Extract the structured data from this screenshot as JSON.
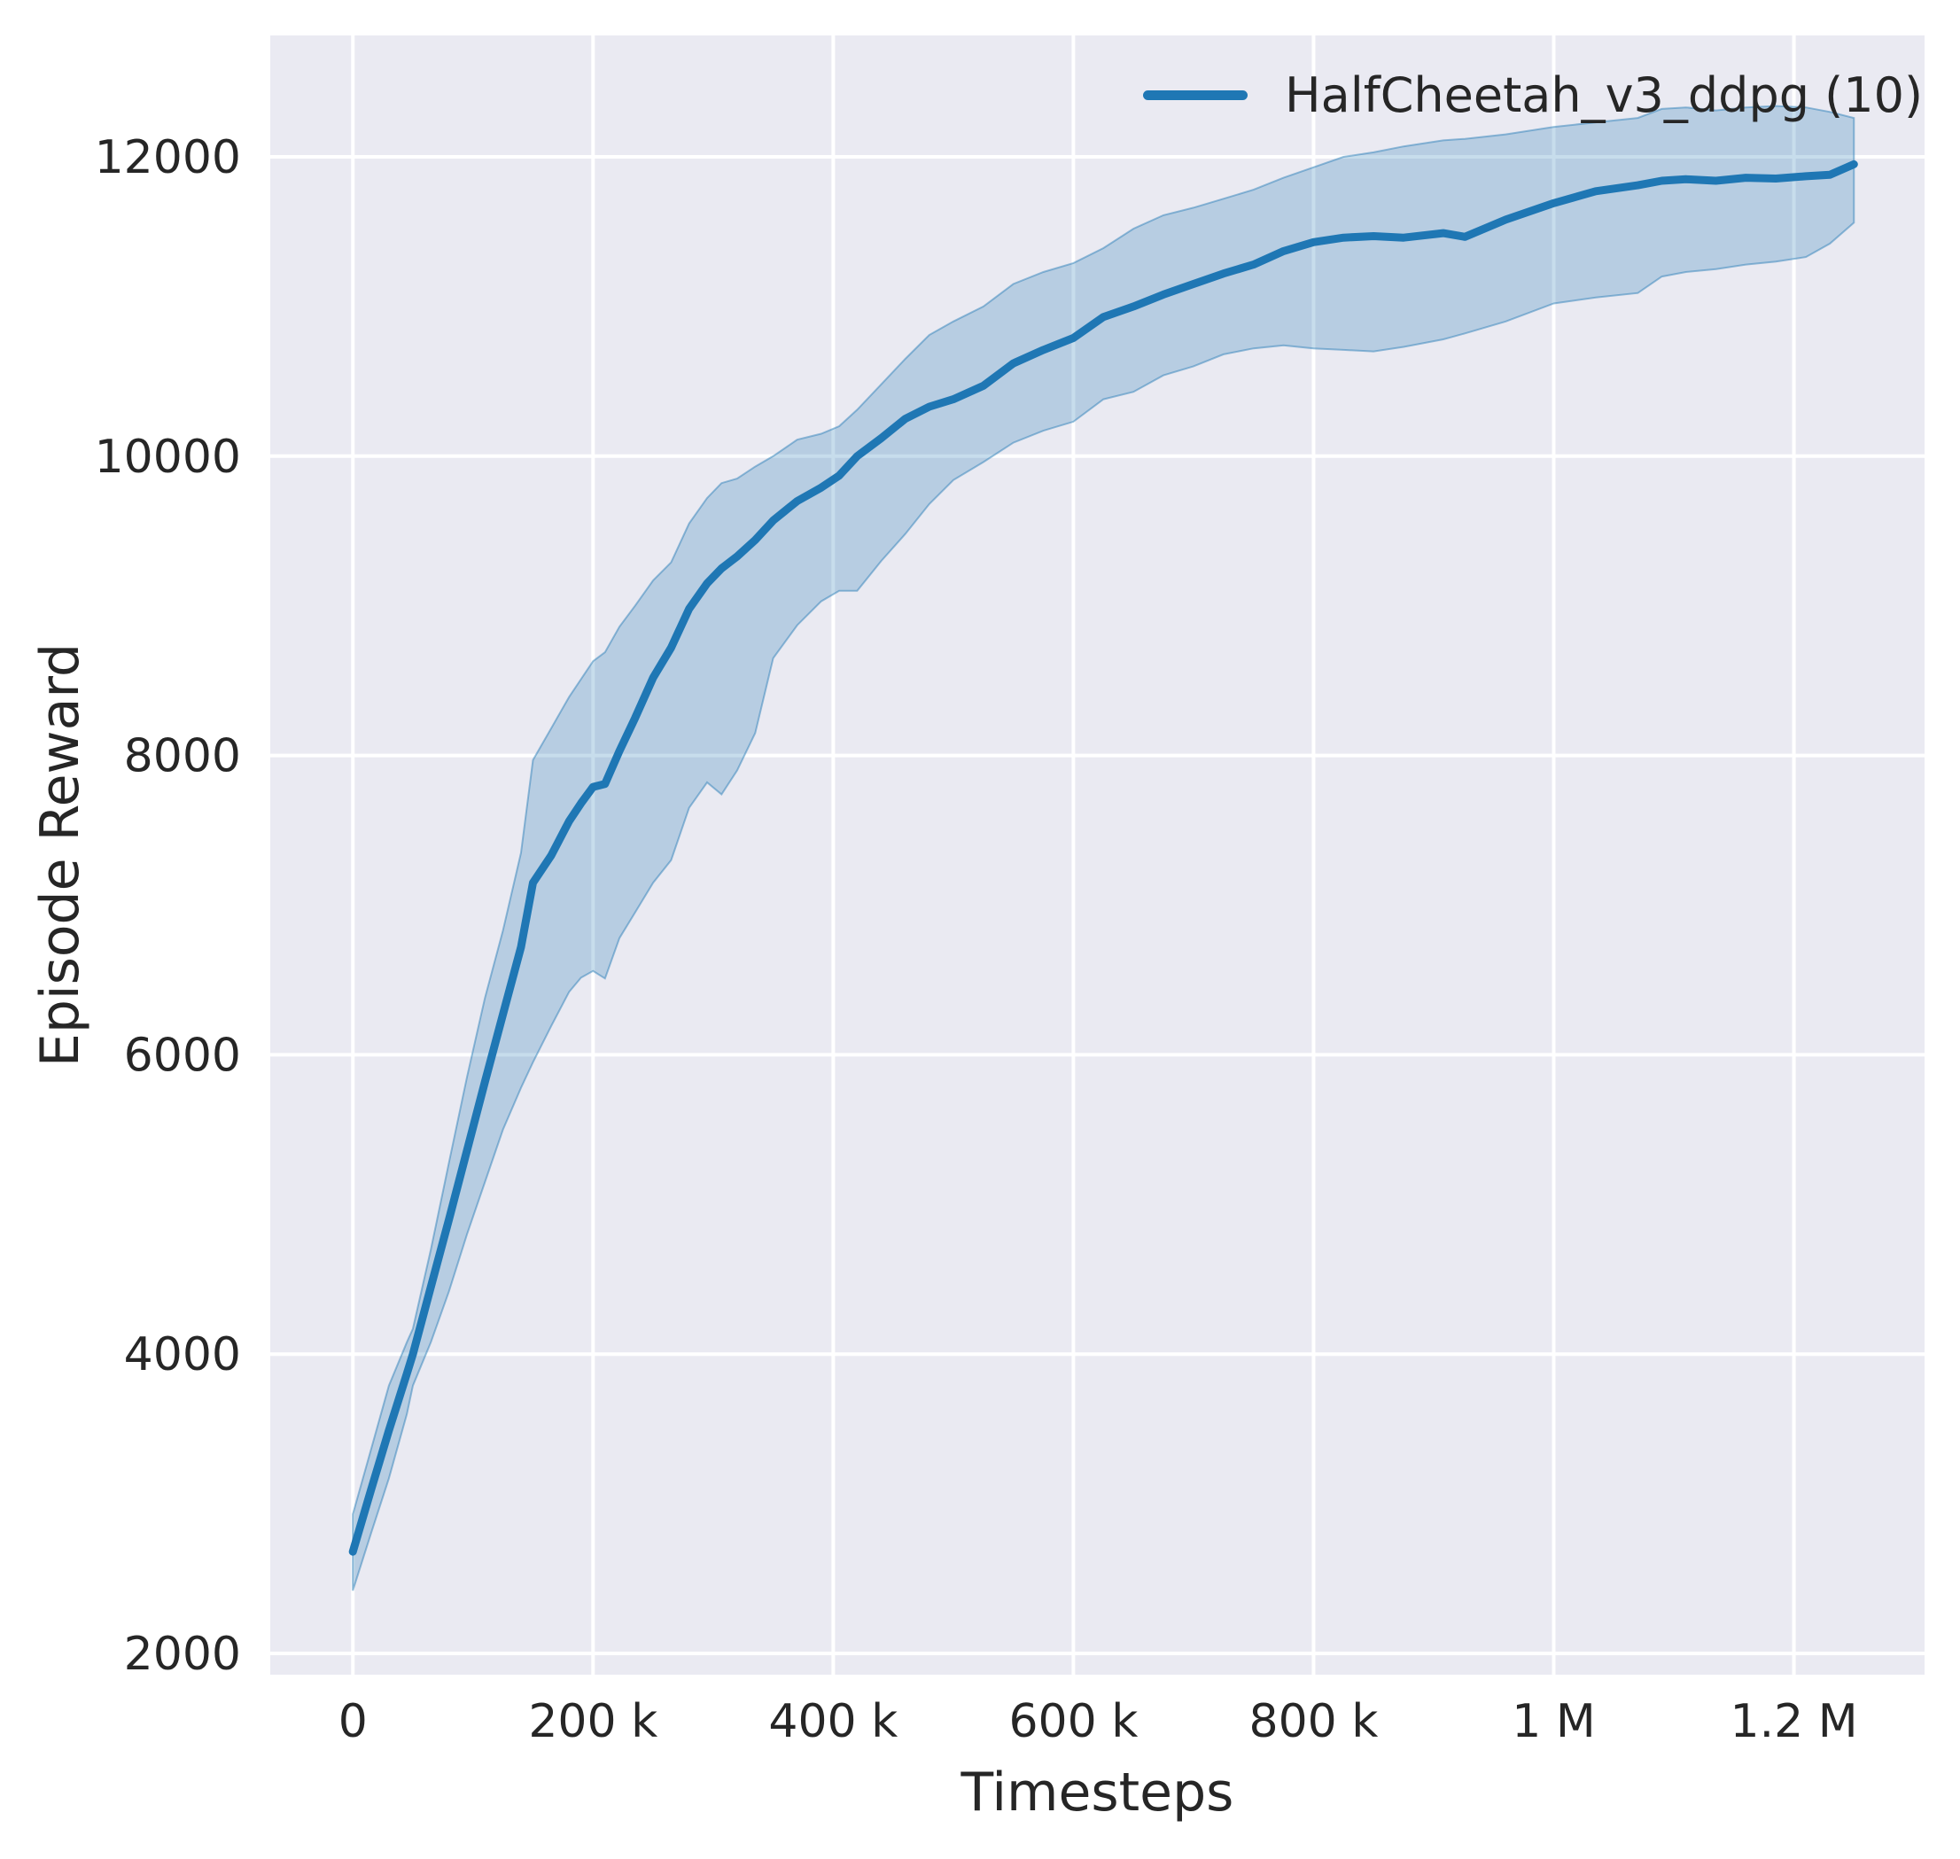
{
  "chart_data": {
    "type": "line",
    "title": "",
    "xlabel": "Timesteps",
    "ylabel": "Episode Reward",
    "grid": true,
    "plot_bg_color": "#eaeaf2",
    "grid_color": "#ffffff",
    "text_color": "#262626",
    "accent_color": "#1f77b4",
    "xlim": [
      -68800,
      1308800
    ],
    "ylim": [
      1858,
      12811
    ],
    "xticks": {
      "values": [
        0,
        200000,
        400000,
        600000,
        800000,
        1000000,
        1200000
      ],
      "labels": [
        "0",
        "200 k",
        "400 k",
        "600 k",
        "800 k",
        "1 M",
        "1.2 M"
      ]
    },
    "yticks": {
      "values": [
        2000,
        4000,
        6000,
        8000,
        10000,
        12000
      ],
      "labels": [
        "2000",
        "4000",
        "6000",
        "8000",
        "10000",
        "12000"
      ]
    },
    "legend": {
      "position": "upper right",
      "entries": [
        {
          "label": "HalfCheetah_v3_ddpg (10)",
          "color": "#1f77b4"
        }
      ]
    },
    "series": [
      {
        "name": "HalfCheetah_v3_ddpg (10)",
        "color": "#1f77b4",
        "band_fill_opacity": 0.25,
        "band_edge_opacity": 0.45,
        "x": [
          0,
          15000,
          30000,
          45000,
          50000,
          65000,
          80000,
          95000,
          110000,
          125000,
          140000,
          150000,
          165000,
          180000,
          190000,
          200000,
          210000,
          222000,
          235000,
          250000,
          265000,
          280000,
          295000,
          307000,
          320000,
          335000,
          350000,
          370000,
          390000,
          405000,
          420000,
          440000,
          460000,
          480000,
          500000,
          525000,
          550000,
          575000,
          600000,
          625000,
          650000,
          675000,
          700000,
          725000,
          750000,
          775000,
          800000,
          825000,
          850000,
          875000,
          908000,
          926000,
          960000,
          1000000,
          1035000,
          1070000,
          1090000,
          1110000,
          1135000,
          1160000,
          1185000,
          1210000,
          1230000,
          1250000
        ],
        "mean": [
          2680,
          3090,
          3490,
          3870,
          4000,
          4450,
          4900,
          5360,
          5820,
          6270,
          6720,
          7150,
          7330,
          7560,
          7680,
          7790,
          7810,
          8030,
          8250,
          8520,
          8720,
          8980,
          9150,
          9250,
          9330,
          9440,
          9570,
          9700,
          9790,
          9870,
          10000,
          10120,
          10250,
          10330,
          10380,
          10470,
          10620,
          10710,
          10790,
          10930,
          11000,
          11080,
          11150,
          11220,
          11280,
          11370,
          11430,
          11460,
          11470,
          11460,
          11490,
          11465,
          11580,
          11690,
          11770,
          11810,
          11840,
          11850,
          11840,
          11860,
          11855,
          11870,
          11880,
          11950
        ],
        "lo": [
          2420,
          2800,
          3170,
          3600,
          3790,
          4080,
          4420,
          4800,
          5150,
          5500,
          5780,
          5950,
          6190,
          6420,
          6515,
          6560,
          6510,
          6780,
          6950,
          7150,
          7300,
          7650,
          7820,
          7740,
          7900,
          8150,
          8650,
          8870,
          9030,
          9100,
          9100,
          9300,
          9480,
          9680,
          9840,
          9960,
          10090,
          10170,
          10230,
          10380,
          10430,
          10540,
          10600,
          10680,
          10720,
          10740,
          10720,
          10710,
          10700,
          10730,
          10780,
          10820,
          10900,
          11020,
          11060,
          11090,
          11200,
          11230,
          11250,
          11280,
          11300,
          11330,
          11420,
          11560
        ],
        "hi": [
          2930,
          3360,
          3790,
          4080,
          4170,
          4700,
          5280,
          5850,
          6380,
          6830,
          7350,
          7970,
          8180,
          8390,
          8510,
          8630,
          8690,
          8860,
          9000,
          9170,
          9290,
          9550,
          9720,
          9820,
          9850,
          9930,
          10000,
          10110,
          10150,
          10200,
          10310,
          10480,
          10650,
          10810,
          10900,
          11000,
          11150,
          11230,
          11290,
          11390,
          11520,
          11610,
          11660,
          11720,
          11780,
          11860,
          11930,
          12000,
          12030,
          12070,
          12110,
          12120,
          12150,
          12200,
          12230,
          12260,
          12320,
          12330,
          12310,
          12330,
          12340,
          12330,
          12300,
          12260
        ]
      }
    ]
  }
}
